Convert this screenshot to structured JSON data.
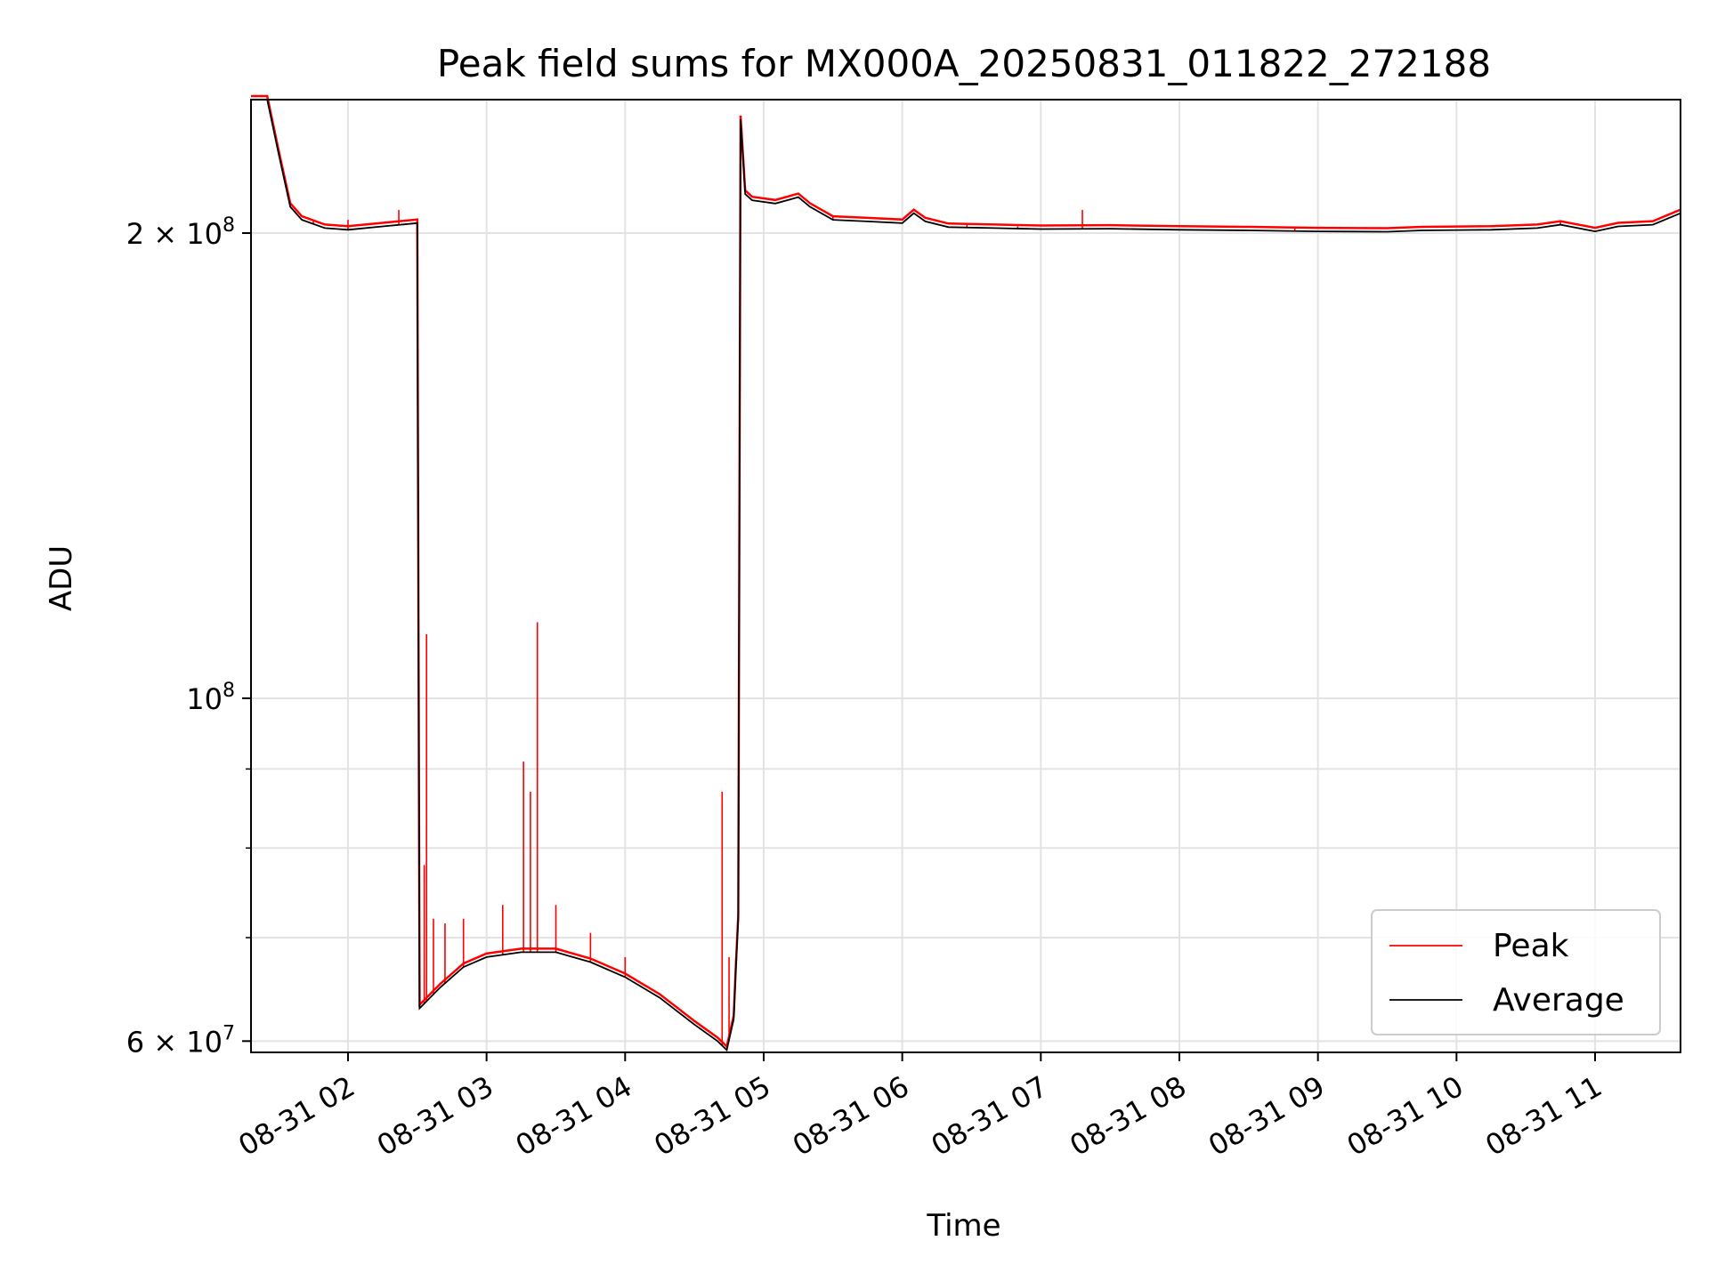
{
  "chart_data": {
    "type": "line",
    "title": "Peak field sums for MX000A_20250831_011822_272188",
    "xlabel": "Time",
    "ylabel": "ADU",
    "yscale": "log",
    "xlim": [
      "2025-08-31 01:18",
      "2025-08-31 11:37"
    ],
    "ylim": [
      59000000,
      244000000
    ],
    "grid": true,
    "legend_position": "lower-right",
    "x_ticks": [
      {
        "t": "2025-08-31 02:00",
        "label": "08-31 02"
      },
      {
        "t": "2025-08-31 03:00",
        "label": "08-31 03"
      },
      {
        "t": "2025-08-31 04:00",
        "label": "08-31 04"
      },
      {
        "t": "2025-08-31 05:00",
        "label": "08-31 05"
      },
      {
        "t": "2025-08-31 06:00",
        "label": "08-31 06"
      },
      {
        "t": "2025-08-31 07:00",
        "label": "08-31 07"
      },
      {
        "t": "2025-08-31 08:00",
        "label": "08-31 08"
      },
      {
        "t": "2025-08-31 09:00",
        "label": "08-31 09"
      },
      {
        "t": "2025-08-31 10:00",
        "label": "08-31 10"
      },
      {
        "t": "2025-08-31 11:00",
        "label": "08-31 11"
      }
    ],
    "y_major_ticks": [
      {
        "value": 60000000,
        "mantissa": "6",
        "base": "10",
        "exp": "7"
      },
      {
        "value": 100000000,
        "mantissa": "",
        "base": "10",
        "exp": "8"
      },
      {
        "value": 200000000,
        "mantissa": "2",
        "base": "10",
        "exp": "8"
      }
    ],
    "y_minor_ticks": [
      70000000,
      80000000,
      90000000
    ],
    "series": [
      {
        "name": "Average",
        "color": "#000000",
        "points": [
          [
            "2025-08-31 01:18",
            244000000
          ],
          [
            "2025-08-31 01:25",
            244000000
          ],
          [
            "2025-08-31 01:30",
            225000000
          ],
          [
            "2025-08-31 01:35",
            208000000
          ],
          [
            "2025-08-31 01:40",
            204000000
          ],
          [
            "2025-08-31 01:50",
            201500000
          ],
          [
            "2025-08-31 02:00",
            201000000
          ],
          [
            "2025-08-31 02:15",
            202000000
          ],
          [
            "2025-08-31 02:30",
            203000000
          ],
          [
            "2025-08-31 02:31",
            63000000
          ],
          [
            "2025-08-31 02:40",
            65000000
          ],
          [
            "2025-08-31 02:50",
            67000000
          ],
          [
            "2025-08-31 03:00",
            68000000
          ],
          [
            "2025-08-31 03:15",
            68500000
          ],
          [
            "2025-08-31 03:30",
            68500000
          ],
          [
            "2025-08-31 03:45",
            67500000
          ],
          [
            "2025-08-31 04:00",
            66000000
          ],
          [
            "2025-08-31 04:15",
            64000000
          ],
          [
            "2025-08-31 04:30",
            61500000
          ],
          [
            "2025-08-31 04:40",
            60000000
          ],
          [
            "2025-08-31 04:44",
            59200000
          ],
          [
            "2025-08-31 04:47",
            62000000
          ],
          [
            "2025-08-31 04:48",
            67000000
          ],
          [
            "2025-08-31 04:49",
            72000000
          ],
          [
            "2025-08-31 04:50",
            237000000
          ],
          [
            "2025-08-31 04:52",
            212000000
          ],
          [
            "2025-08-31 04:55",
            210000000
          ],
          [
            "2025-08-31 05:05",
            209000000
          ],
          [
            "2025-08-31 05:15",
            211000000
          ],
          [
            "2025-08-31 05:20",
            208000000
          ],
          [
            "2025-08-31 05:30",
            204000000
          ],
          [
            "2025-08-31 05:45",
            203500000
          ],
          [
            "2025-08-31 06:00",
            203000000
          ],
          [
            "2025-08-31 06:05",
            206000000
          ],
          [
            "2025-08-31 06:10",
            203500000
          ],
          [
            "2025-08-31 06:20",
            201800000
          ],
          [
            "2025-08-31 06:40",
            201500000
          ],
          [
            "2025-08-31 07:00",
            201200000
          ],
          [
            "2025-08-31 07:30",
            201300000
          ],
          [
            "2025-08-31 08:00",
            201000000
          ],
          [
            "2025-08-31 08:30",
            200800000
          ],
          [
            "2025-08-31 09:00",
            200500000
          ],
          [
            "2025-08-31 09:30",
            200400000
          ],
          [
            "2025-08-31 09:45",
            200800000
          ],
          [
            "2025-08-31 10:15",
            201000000
          ],
          [
            "2025-08-31 10:35",
            201500000
          ],
          [
            "2025-08-31 10:45",
            202500000
          ],
          [
            "2025-08-31 11:00",
            200500000
          ],
          [
            "2025-08-31 11:10",
            202000000
          ],
          [
            "2025-08-31 11:25",
            202500000
          ],
          [
            "2025-08-31 11:37",
            206000000
          ]
        ]
      },
      {
        "name": "Peak",
        "color": "#ff0000",
        "spikes": [
          [
            "2025-08-31 01:45",
            204000000
          ],
          [
            "2025-08-31 02:00",
            204000000
          ],
          [
            "2025-08-31 02:22",
            207000000
          ],
          [
            "2025-08-31 02:33",
            78000000
          ],
          [
            "2025-08-31 02:34",
            110000000
          ],
          [
            "2025-08-31 02:37",
            72000000
          ],
          [
            "2025-08-31 02:42",
            71500000
          ],
          [
            "2025-08-31 02:50",
            72000000
          ],
          [
            "2025-08-31 03:07",
            73500000
          ],
          [
            "2025-08-31 03:16",
            91000000
          ],
          [
            "2025-08-31 03:19",
            87000000
          ],
          [
            "2025-08-31 03:22",
            112000000
          ],
          [
            "2025-08-31 03:30",
            73500000
          ],
          [
            "2025-08-31 03:45",
            70500000
          ],
          [
            "2025-08-31 04:00",
            68000000
          ],
          [
            "2025-08-31 04:42",
            87000000
          ],
          [
            "2025-08-31 04:45",
            68000000
          ],
          [
            "2025-08-31 05:30",
            205000000
          ],
          [
            "2025-08-31 06:28",
            202500000
          ],
          [
            "2025-08-31 06:50",
            202000000
          ],
          [
            "2025-08-31 07:18",
            207000000
          ],
          [
            "2025-08-31 08:50",
            202000000
          ],
          [
            "2025-08-31 10:45",
            203500000
          ]
        ]
      }
    ]
  }
}
